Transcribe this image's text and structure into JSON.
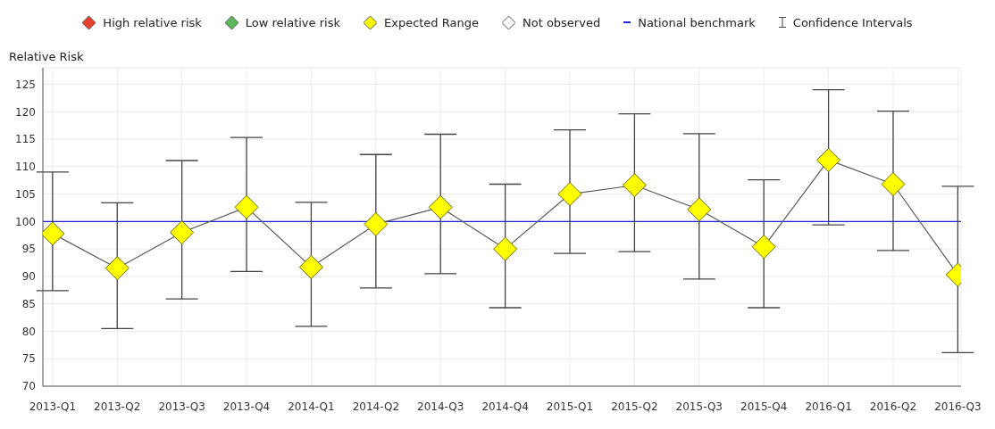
{
  "chart_data": {
    "type": "line",
    "ylabel": "Relative Risk",
    "categories": [
      "2013-Q1",
      "2013-Q2",
      "2013-Q3",
      "2013-Q4",
      "2014-Q1",
      "2014-Q2",
      "2014-Q3",
      "2014-Q4",
      "2015-Q1",
      "2015-Q2",
      "2015-Q3",
      "2015-Q4",
      "2016-Q1",
      "2016-Q2",
      "2016-Q3"
    ],
    "series": [
      {
        "name": "High relative risk",
        "color": "#e8402a",
        "values": [
          null,
          null,
          null,
          null,
          null,
          null,
          null,
          null,
          null,
          null,
          null,
          null,
          null,
          null,
          null
        ]
      },
      {
        "name": "Low relative risk",
        "color": "#5cb85c",
        "values": [
          null,
          null,
          null,
          null,
          null,
          null,
          null,
          null,
          null,
          null,
          null,
          null,
          null,
          null,
          null
        ]
      },
      {
        "name": "Expected Range",
        "color": "#ffff00",
        "values": [
          97.8,
          91.5,
          98,
          102.6,
          91.7,
          99.5,
          102.6,
          95,
          105,
          106.6,
          102.2,
          95.4,
          111.2,
          106.8,
          90.3
        ],
        "errors": [
          [
            87.4,
            109
          ],
          [
            80.5,
            103.4
          ],
          [
            85.9,
            111.1
          ],
          [
            90.9,
            115.3
          ],
          [
            80.9,
            103.5
          ],
          [
            87.9,
            112.2
          ],
          [
            90.5,
            115.9
          ],
          [
            84.3,
            106.8
          ],
          [
            94.2,
            116.7
          ],
          [
            94.5,
            119.6
          ],
          [
            89.5,
            116
          ],
          [
            84.3,
            107.6
          ],
          [
            99.4,
            124
          ],
          [
            94.7,
            120.1
          ],
          [
            76.1,
            106.4
          ]
        ]
      },
      {
        "name": "Not observed",
        "color": "#ffffff",
        "values": [
          null,
          null,
          null,
          null,
          null,
          null,
          null,
          null,
          null,
          null,
          null,
          null,
          null,
          null,
          null
        ]
      }
    ],
    "ref_lines": [
      {
        "axis": "y",
        "value": 100,
        "label": "National benchmark",
        "color": "#2323d9"
      }
    ],
    "annotations": [
      "Confidence Intervals"
    ],
    "ylim": [
      70,
      128
    ],
    "yticks": [
      70,
      75,
      80,
      85,
      90,
      95,
      100,
      105,
      110,
      115,
      120,
      125
    ],
    "grid": true,
    "legend": "top",
    "marker": "diamond",
    "line_style": "solid"
  }
}
